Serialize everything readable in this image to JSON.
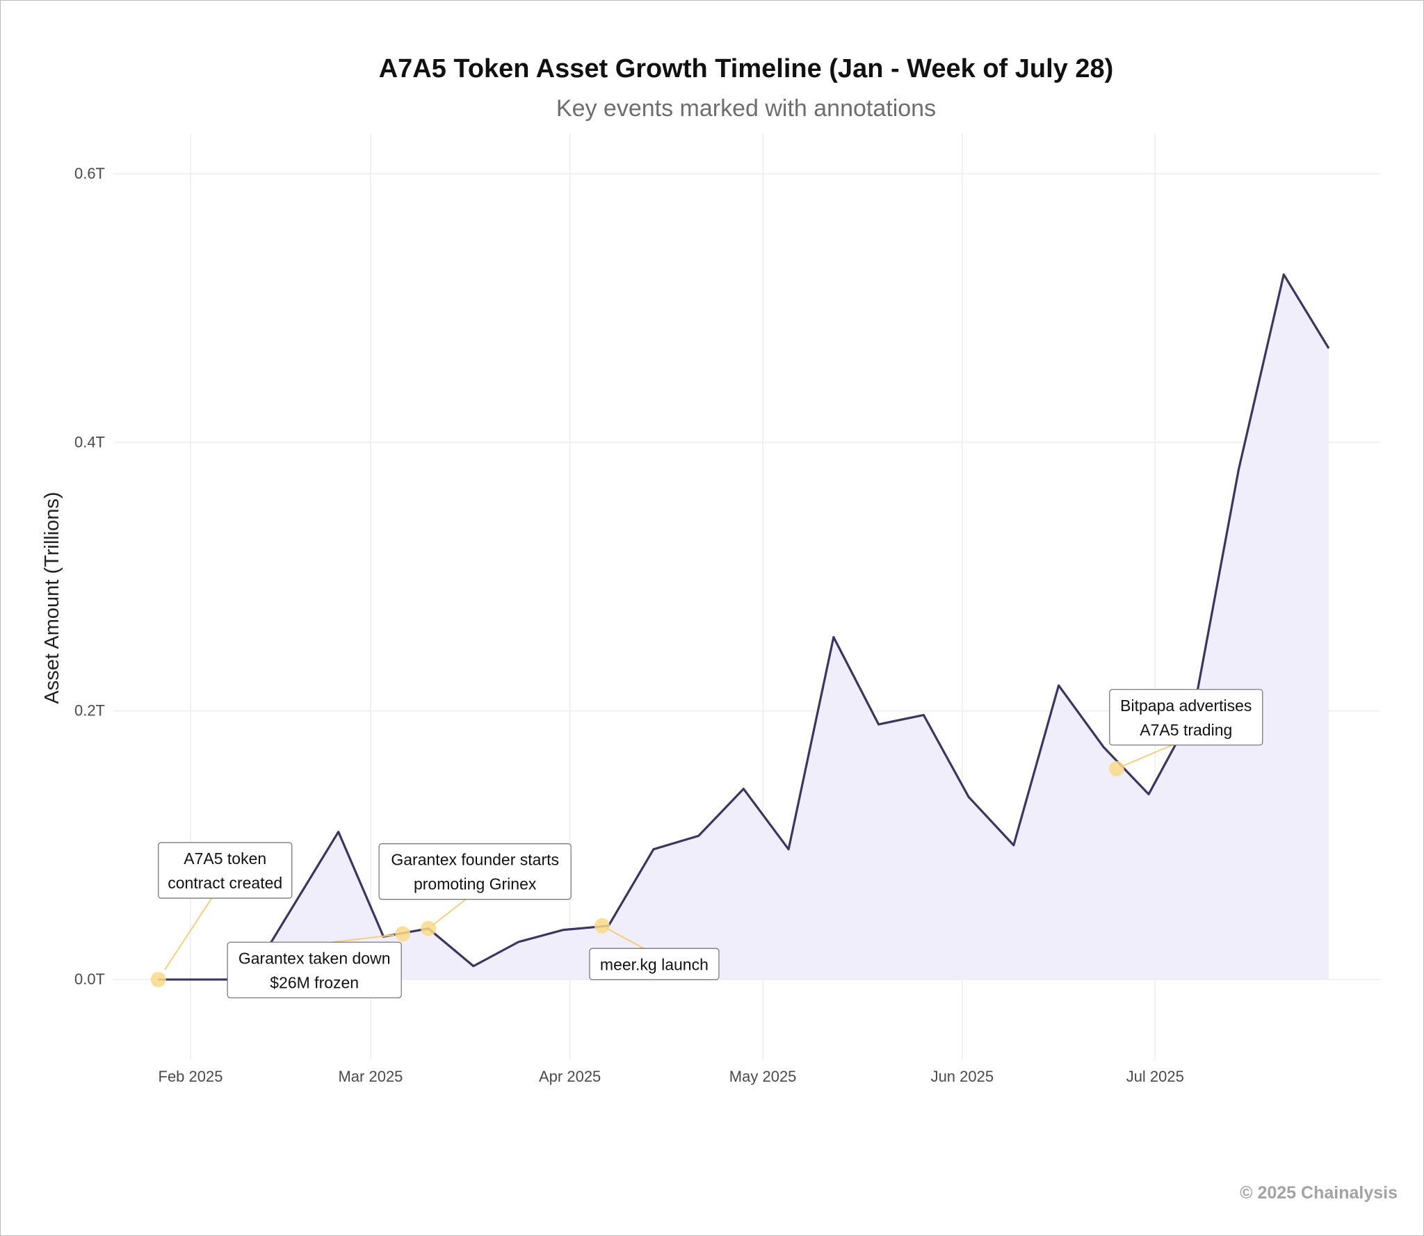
{
  "title": "A7A5 Token Asset Growth Timeline (Jan - Week of July 28)",
  "subtitle": "Key events marked with annotations",
  "copyright": "© 2025 Chainalysis",
  "colors": {
    "line": "#3b3561",
    "area": "#f1eefb",
    "marker": "#f9d98a",
    "annotation_arrow": "#f3d07e",
    "grid": "#ececf2"
  },
  "chart_data": {
    "type": "area",
    "ylabel": "Asset Amount (Trillions)",
    "ylim": [
      -0.06,
      0.63
    ],
    "xlim": [
      "2025-01-20",
      "2025-08-05"
    ],
    "grid": true,
    "x_ticks": [
      {
        "date": "2025-02-01",
        "label": "Feb 2025"
      },
      {
        "date": "2025-03-01",
        "label": "Mar 2025"
      },
      {
        "date": "2025-04-01",
        "label": "Apr 2025"
      },
      {
        "date": "2025-05-01",
        "label": "May 2025"
      },
      {
        "date": "2025-06-01",
        "label": "Jun 2025"
      },
      {
        "date": "2025-07-01",
        "label": "Jul 2025"
      }
    ],
    "y_ticks": [
      {
        "value": 0.0,
        "label": "0.0T"
      },
      {
        "value": 0.2,
        "label": "0.2T"
      },
      {
        "value": 0.4,
        "label": "0.4T"
      },
      {
        "value": 0.6,
        "label": "0.6T"
      }
    ],
    "series": [
      {
        "points": [
          {
            "x": "2025-01-27",
            "y": 0.0
          },
          {
            "x": "2025-02-03",
            "y": 0.0
          },
          {
            "x": "2025-02-10",
            "y": 0.0
          },
          {
            "x": "2025-02-17",
            "y": 0.055
          },
          {
            "x": "2025-02-24",
            "y": 0.11
          },
          {
            "x": "2025-03-03",
            "y": 0.032
          },
          {
            "x": "2025-03-10",
            "y": 0.038
          },
          {
            "x": "2025-03-17",
            "y": 0.01
          },
          {
            "x": "2025-03-24",
            "y": 0.028
          },
          {
            "x": "2025-03-31",
            "y": 0.037
          },
          {
            "x": "2025-04-07",
            "y": 0.04
          },
          {
            "x": "2025-04-14",
            "y": 0.097
          },
          {
            "x": "2025-04-21",
            "y": 0.107
          },
          {
            "x": "2025-04-28",
            "y": 0.142
          },
          {
            "x": "2025-05-05",
            "y": 0.097
          },
          {
            "x": "2025-05-12",
            "y": 0.255
          },
          {
            "x": "2025-05-19",
            "y": 0.19
          },
          {
            "x": "2025-05-26",
            "y": 0.197
          },
          {
            "x": "2025-06-02",
            "y": 0.136
          },
          {
            "x": "2025-06-09",
            "y": 0.1
          },
          {
            "x": "2025-06-16",
            "y": 0.219
          },
          {
            "x": "2025-06-23",
            "y": 0.173
          },
          {
            "x": "2025-06-30",
            "y": 0.138
          },
          {
            "x": "2025-07-07",
            "y": 0.2
          },
          {
            "x": "2025-07-14",
            "y": 0.38
          },
          {
            "x": "2025-07-21",
            "y": 0.525
          },
          {
            "x": "2025-07-28",
            "y": 0.47
          }
        ]
      }
    ],
    "annotations": [
      {
        "lines": [
          "A7A5 token",
          "contract created"
        ],
        "x": "2025-01-27",
        "y": 0.0
      },
      {
        "lines": [
          "Garantex taken down",
          "$26M frozen"
        ],
        "x": "2025-03-06",
        "y": 0.034
      },
      {
        "lines": [
          "Garantex founder starts",
          "promoting Grinex"
        ],
        "x": "2025-03-10",
        "y": 0.038
      },
      {
        "lines": [
          "meer.kg launch"
        ],
        "x": "2025-04-06",
        "y": 0.04
      },
      {
        "lines": [
          "Bitpapa advertises",
          "A7A5 trading"
        ],
        "x": "2025-06-25",
        "y": 0.157
      }
    ]
  }
}
